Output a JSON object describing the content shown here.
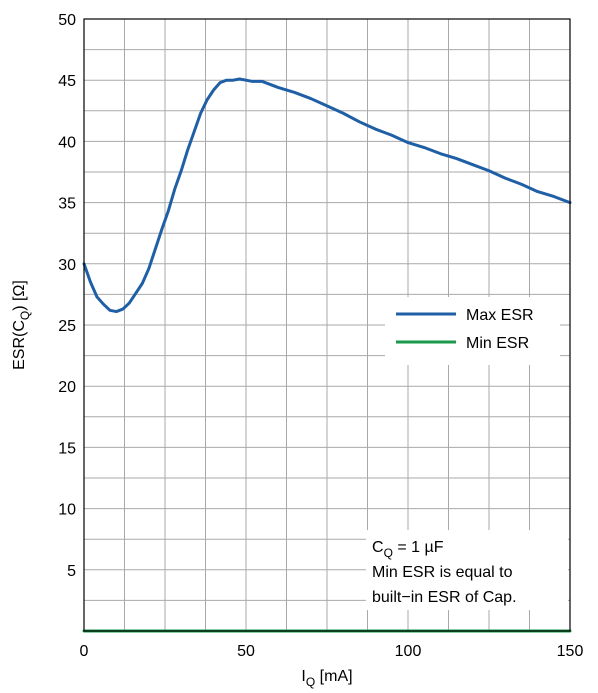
{
  "chart_data": {
    "type": "line",
    "title": "",
    "xlabel": {
      "main": "I",
      "sub": "Q",
      "suffix": " [mA]"
    },
    "ylabel": {
      "main": "ESR(C",
      "sub": "Q",
      "suffix": ") [Ω]"
    },
    "xlim": [
      0,
      150
    ],
    "ylim": [
      0,
      50
    ],
    "x_major_ticks": [
      0,
      50,
      100,
      150
    ],
    "x_tick_labels": [
      "0",
      "50",
      "100",
      "150"
    ],
    "x_grid": [
      0,
      12.5,
      25,
      37.5,
      50,
      62.5,
      75,
      87.5,
      100,
      112.5,
      125,
      137.5,
      150
    ],
    "y_ticks": [
      5,
      10,
      15,
      20,
      25,
      30,
      35,
      40,
      45,
      50
    ],
    "y_tick_labels": [
      "5",
      "10",
      "15",
      "20",
      "25",
      "30",
      "35",
      "40",
      "45",
      "50"
    ],
    "y_grid": [
      2.5,
      5,
      7.5,
      10,
      12.5,
      15,
      17.5,
      20,
      22.5,
      25,
      27.5,
      30,
      32.5,
      35,
      37.5,
      40,
      42.5,
      45,
      47.5,
      50
    ],
    "grid": true,
    "legend_position": "center-right",
    "series": [
      {
        "name": "Max ESR",
        "color": "#1f5fa6",
        "x": [
          0,
          2,
          4,
          6,
          8,
          10,
          12,
          14,
          16,
          18,
          20,
          22,
          24,
          26,
          28,
          30,
          32,
          34,
          36,
          38,
          40,
          42,
          44,
          46,
          48,
          50,
          52,
          55,
          60,
          65,
          70,
          75,
          80,
          85,
          90,
          95,
          100,
          105,
          110,
          115,
          120,
          125,
          130,
          135,
          140,
          145,
          150
        ],
        "y": [
          30,
          28.5,
          27.3,
          26.7,
          26.2,
          26.1,
          26.3,
          26.8,
          27.6,
          28.4,
          29.6,
          31.2,
          32.8,
          34.3,
          36.1,
          37.6,
          39.3,
          40.8,
          42.3,
          43.4,
          44.2,
          44.8,
          45.0,
          45.0,
          45.1,
          45.0,
          44.9,
          44.9,
          44.4,
          44.0,
          43.5,
          42.9,
          42.3,
          41.6,
          41.0,
          40.5,
          39.9,
          39.5,
          39.0,
          38.6,
          38.1,
          37.6,
          37.0,
          36.5,
          35.9,
          35.5,
          35.0
        ]
      },
      {
        "name": "Min ESR",
        "color": "#1a9a4a",
        "x": [
          0,
          150
        ],
        "y": [
          0,
          0
        ]
      }
    ],
    "annotation": {
      "line1_main": "C",
      "line1_sub": "Q",
      "line1_suffix": " = 1 µF",
      "line2": "Min ESR is equal to",
      "line3": "built−in ESR of Cap."
    }
  }
}
